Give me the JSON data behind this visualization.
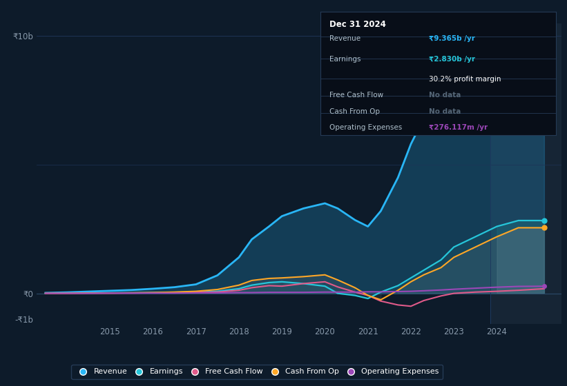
{
  "background_color": "#0d1b2a",
  "revenue_color": "#29b6f6",
  "earnings_color": "#26c6da",
  "fcf_color": "#e05a8a",
  "cashop_color": "#ffa726",
  "opex_color": "#9c47b8",
  "title": "Dec 31 2024",
  "ylabel_10b": "₹10b",
  "ylabel_0": "₹0",
  "ylabel_neg1b": "-₹1b",
  "xlabel_years": [
    "2015",
    "2016",
    "2017",
    "2018",
    "2019",
    "2020",
    "2021",
    "2022",
    "2023",
    "2024"
  ],
  "legend_items": [
    "Revenue",
    "Earnings",
    "Free Cash Flow",
    "Cash From Op",
    "Operating Expenses"
  ],
  "years": [
    2013.5,
    2014,
    2014.5,
    2015,
    2015.5,
    2016,
    2016.5,
    2017,
    2017.5,
    2018,
    2018.3,
    2018.7,
    2019,
    2019.5,
    2020,
    2020.3,
    2020.7,
    2021,
    2021.3,
    2021.7,
    2022,
    2022.3,
    2022.7,
    2023,
    2023.5,
    2024,
    2024.5,
    2025.1
  ],
  "revenue": [
    0.02,
    0.04,
    0.07,
    0.1,
    0.13,
    0.18,
    0.24,
    0.35,
    0.7,
    1.4,
    2.1,
    2.6,
    3.0,
    3.3,
    3.5,
    3.3,
    2.85,
    2.6,
    3.2,
    4.5,
    5.8,
    6.8,
    7.6,
    8.1,
    8.5,
    8.9,
    9.3,
    9.7
  ],
  "earnings": [
    0.0,
    0.01,
    0.01,
    0.02,
    0.02,
    0.03,
    0.04,
    0.05,
    0.08,
    0.18,
    0.32,
    0.42,
    0.45,
    0.38,
    0.28,
    0.0,
    -0.08,
    -0.2,
    0.05,
    0.3,
    0.6,
    0.9,
    1.3,
    1.8,
    2.2,
    2.6,
    2.83,
    2.83
  ],
  "fcf": [
    0.0,
    0.0,
    0.01,
    0.01,
    0.01,
    0.02,
    0.02,
    0.04,
    0.05,
    0.12,
    0.22,
    0.3,
    0.28,
    0.38,
    0.45,
    0.25,
    0.05,
    -0.08,
    -0.3,
    -0.45,
    -0.5,
    -0.28,
    -0.1,
    0.0,
    0.05,
    0.08,
    0.12,
    0.18
  ],
  "cashop": [
    0.0,
    0.0,
    0.01,
    0.01,
    0.02,
    0.03,
    0.05,
    0.08,
    0.15,
    0.32,
    0.5,
    0.58,
    0.6,
    0.65,
    0.72,
    0.52,
    0.22,
    -0.08,
    -0.25,
    0.12,
    0.45,
    0.72,
    1.0,
    1.4,
    1.8,
    2.2,
    2.55,
    2.55
  ],
  "opex": [
    0.0,
    0.0,
    0.0,
    0.01,
    0.01,
    0.01,
    0.01,
    0.02,
    0.02,
    0.03,
    0.03,
    0.04,
    0.04,
    0.04,
    0.05,
    0.05,
    0.05,
    0.06,
    0.06,
    0.07,
    0.08,
    0.1,
    0.13,
    0.16,
    0.2,
    0.24,
    0.27,
    0.276
  ],
  "ylim": [
    -1.2,
    10.5
  ],
  "xlim": [
    2013.3,
    2025.5
  ],
  "highlight_start": 2023.85,
  "grid_line_color": "#1e3355",
  "zero_line_color": "#2a4a6a"
}
